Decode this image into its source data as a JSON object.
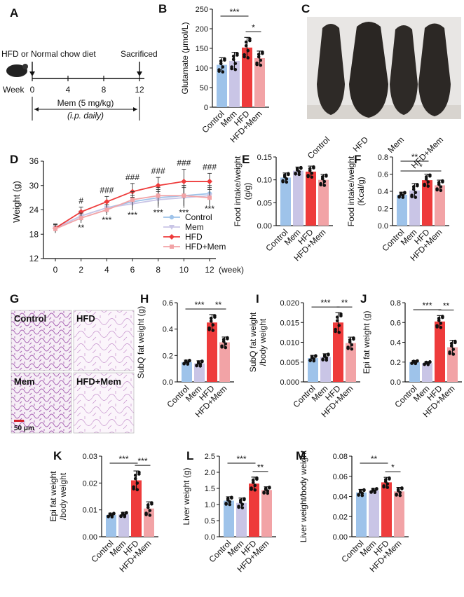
{
  "colors": {
    "Control": "#9ec3ea",
    "Mem": "#c9c5e6",
    "HFD": "#ee3b3b",
    "HFD+Mem": "#f2a3a6",
    "ink": "#111111",
    "sig": "#111111"
  },
  "groups": [
    "Control",
    "Mem",
    "HFD",
    "HFD+Mem"
  ],
  "panelA": {
    "letter": "A",
    "top_left": "HFD or Normal chow diet",
    "top_right": "Sacrificed",
    "week_label": "Week",
    "ticks": [
      "0",
      "4",
      "8",
      "12"
    ],
    "mem_label": "Mem (5 mg/kg)",
    "ip_label": "(i.p. daily)"
  },
  "panelC": {
    "letter": "C",
    "labels": [
      "Control",
      "HFD",
      "Mem",
      "HFD+Mem"
    ]
  },
  "panelG": {
    "letter": "G",
    "labels": [
      "Control",
      "HFD",
      "Mem",
      "HFD+Mem"
    ],
    "scale": "50 μm"
  },
  "panelD": {
    "letter": "D",
    "ylabel": "Weight (g)",
    "xlabel": "(week)",
    "ylim": [
      12,
      36
    ],
    "yticks": [
      "12",
      "18",
      "24",
      "30",
      "36"
    ],
    "xticks": [
      "0",
      "2",
      "4",
      "6",
      "8",
      "10",
      "12"
    ],
    "hash": [
      "#",
      "###",
      "###",
      "###",
      "###",
      "###"
    ],
    "stars": [
      "**",
      "***",
      "***",
      "***",
      "***",
      "***"
    ],
    "legend": [
      "Control",
      "Mem",
      "HFD",
      "HFD+Mem"
    ]
  },
  "chart_data": [
    {
      "id": "B",
      "type": "bar",
      "title": "B",
      "ylabel": "Glutamate (μmol/L)",
      "ylim": [
        0,
        250
      ],
      "yticks": [
        "0",
        "50",
        "100",
        "150",
        "200",
        "250"
      ],
      "categories": [
        "Control",
        "Mem",
        "HFD",
        "HFD+Mem"
      ],
      "values": [
        108,
        118,
        152,
        125
      ],
      "errors": [
        18,
        22,
        26,
        18
      ],
      "significance": [
        {
          "from": 0,
          "to": 2,
          "label": "***"
        },
        {
          "from": 2,
          "to": 3,
          "label": "*"
        }
      ]
    },
    {
      "id": "D",
      "type": "line",
      "title": "D",
      "ylabel": "Weight (g)",
      "xlabel": "(week)",
      "x": [
        0,
        2,
        4,
        6,
        8,
        10,
        12
      ],
      "ylim": [
        12,
        36
      ],
      "series": [
        {
          "name": "Control",
          "values": [
            19.5,
            22.5,
            24.5,
            26,
            27,
            27.5,
            28
          ],
          "errors": [
            1,
            1.2,
            1.3,
            1.6,
            2,
            2.5,
            2
          ]
        },
        {
          "name": "Mem",
          "values": [
            19.5,
            22.5,
            24.5,
            25.5,
            26.5,
            27,
            27.5
          ],
          "errors": [
            1,
            1.2,
            1.3,
            1.6,
            2,
            2.5,
            2
          ]
        },
        {
          "name": "HFD",
          "values": [
            19.5,
            23.5,
            26,
            28.5,
            30,
            31,
            31
          ],
          "errors": [
            1,
            1.2,
            1.3,
            2,
            2,
            3,
            2
          ]
        },
        {
          "name": "HFD+Mem",
          "values": [
            19.3,
            22,
            24,
            26.5,
            27.5,
            27.5,
            27
          ],
          "errors": [
            1,
            1.2,
            1.3,
            2,
            2,
            2.5,
            2
          ]
        }
      ]
    },
    {
      "id": "E",
      "type": "bar",
      "title": "E",
      "ylabel": "Food intake/weight (g/g)",
      "ylim": [
        0,
        0.15
      ],
      "yticks": [
        "0.00",
        "0.05",
        "0.10",
        "0.15"
      ],
      "categories": [
        "Control",
        "Mem",
        "HFD",
        "HFD+Mem"
      ],
      "values": [
        0.105,
        0.12,
        0.118,
        0.1
      ],
      "errors": [
        0.01,
        0.008,
        0.012,
        0.012
      ],
      "significance": []
    },
    {
      "id": "F",
      "type": "bar",
      "title": "F",
      "ylabel": "Food intake/weight (Kcal/g)",
      "ylim": [
        0,
        0.8
      ],
      "yticks": [
        "0.0",
        "0.2",
        "0.4",
        "0.6",
        "0.8"
      ],
      "categories": [
        "Control",
        "Mem",
        "HFD",
        "HFD+Mem"
      ],
      "values": [
        0.36,
        0.41,
        0.53,
        0.47
      ],
      "errors": [
        0.03,
        0.08,
        0.07,
        0.06
      ],
      "significance": [
        {
          "from": 0,
          "to": 2,
          "label": "**"
        },
        {
          "from": 0,
          "to": 3,
          "label": "*"
        }
      ]
    },
    {
      "id": "H",
      "type": "bar",
      "title": "H",
      "ylabel": "SubQ fat weight (g)",
      "ylim": [
        0,
        0.6
      ],
      "yticks": [
        "0.0",
        "0.2",
        "0.4",
        "0.6"
      ],
      "categories": [
        "Control",
        "Mem",
        "HFD",
        "HFD+Mem"
      ],
      "values": [
        0.15,
        0.14,
        0.45,
        0.3
      ],
      "errors": [
        0.015,
        0.02,
        0.06,
        0.04
      ],
      "significance": [
        {
          "from": 0,
          "to": 2,
          "label": "***"
        },
        {
          "from": 2,
          "to": 3,
          "label": "**"
        }
      ]
    },
    {
      "id": "I",
      "type": "bar",
      "title": "I",
      "ylabel": "SubQ fat weight /body weight",
      "ylim": [
        0,
        0.02
      ],
      "yticks": [
        "0.000",
        "0.005",
        "0.010",
        "0.015",
        "0.020"
      ],
      "categories": [
        "Control",
        "Mem",
        "HFD",
        "HFD+Mem"
      ],
      "values": [
        0.006,
        0.0063,
        0.015,
        0.0098
      ],
      "errors": [
        0.0007,
        0.0008,
        0.0025,
        0.0015
      ],
      "significance": [
        {
          "from": 0,
          "to": 2,
          "label": "***"
        },
        {
          "from": 2,
          "to": 3,
          "label": "**"
        }
      ]
    },
    {
      "id": "J",
      "type": "bar",
      "title": "J",
      "ylabel": "Epi fat weight (g)",
      "ylim": [
        0,
        0.8
      ],
      "yticks": [
        "0.0",
        "0.2",
        "0.4",
        "0.6",
        "0.8"
      ],
      "categories": [
        "Control",
        "Mem",
        "HFD",
        "HFD+Mem"
      ],
      "values": [
        0.2,
        0.19,
        0.61,
        0.35
      ],
      "errors": [
        0.015,
        0.015,
        0.06,
        0.07
      ],
      "significance": [
        {
          "from": 0,
          "to": 2,
          "label": "***"
        },
        {
          "from": 2,
          "to": 3,
          "label": "**"
        }
      ]
    },
    {
      "id": "K",
      "type": "bar",
      "title": "K",
      "ylabel": "Epi fat weight /body weight",
      "ylim": [
        0,
        0.03
      ],
      "yticks": [
        "0.00",
        "0.01",
        "0.02",
        "0.03"
      ],
      "categories": [
        "Control",
        "Mem",
        "HFD",
        "HFD+Mem"
      ],
      "values": [
        0.0081,
        0.0083,
        0.021,
        0.0105
      ],
      "errors": [
        0.0007,
        0.0008,
        0.0035,
        0.0025
      ],
      "significance": [
        {
          "from": 0,
          "to": 2,
          "label": "***"
        },
        {
          "from": 2,
          "to": 3,
          "label": "***"
        }
      ]
    },
    {
      "id": "L",
      "type": "bar",
      "title": "L",
      "ylabel": "Liver weight (g)",
      "ylim": [
        0,
        2.5
      ],
      "yticks": [
        "0.0",
        "0.5",
        "1.0",
        "1.5",
        "2.0",
        "2.5"
      ],
      "categories": [
        "Control",
        "Mem",
        "HFD",
        "HFD+Mem"
      ],
      "values": [
        1.12,
        1.05,
        1.65,
        1.45
      ],
      "errors": [
        0.12,
        0.15,
        0.2,
        0.1
      ],
      "significance": [
        {
          "from": 0,
          "to": 2,
          "label": "***"
        },
        {
          "from": 2,
          "to": 3,
          "label": "**"
        }
      ]
    },
    {
      "id": "M",
      "type": "bar",
      "title": "M",
      "ylabel": "Liver weight/body weight",
      "ylim": [
        0,
        0.08
      ],
      "yticks": [
        "0.00",
        "0.02",
        "0.04",
        "0.06",
        "0.08"
      ],
      "categories": [
        "Control",
        "Mem",
        "HFD",
        "HFD+Mem"
      ],
      "values": [
        0.044,
        0.046,
        0.054,
        0.045
      ],
      "errors": [
        0.003,
        0.002,
        0.005,
        0.004
      ],
      "significance": [
        {
          "from": 0,
          "to": 2,
          "label": "**"
        },
        {
          "from": 2,
          "to": 3,
          "label": "*"
        }
      ]
    }
  ]
}
